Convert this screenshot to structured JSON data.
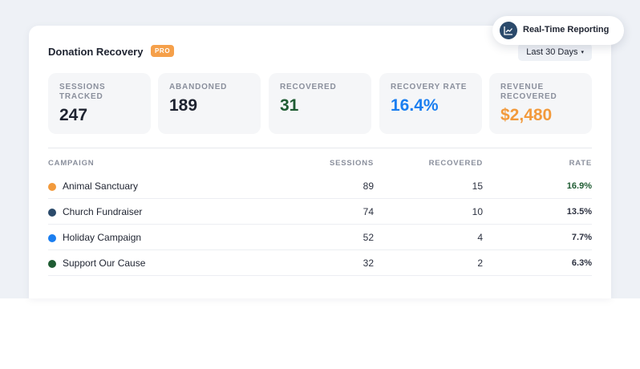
{
  "header": {
    "title": "Donation Recovery",
    "badge": "PRO",
    "range_label": "Last 30 Days",
    "range_caret": "▾"
  },
  "floating_pill": {
    "label": "Real-Time Reporting",
    "icon": "line-chart-icon"
  },
  "stats": [
    {
      "label": "SESSIONS TRACKED",
      "value": "247",
      "color": "#1e2330"
    },
    {
      "label": "ABANDONED",
      "value": "189",
      "color": "#1e2330"
    },
    {
      "label": "RECOVERED",
      "value": "31",
      "color": "#1f5c33"
    },
    {
      "label": "RECOVERY RATE",
      "value": "16.4%",
      "color": "#1a7ef0"
    },
    {
      "label": "REVENUE RECOVERED",
      "value": "$2,480",
      "color": "#f29a3c"
    }
  ],
  "table": {
    "columns": [
      "CAMPAIGN",
      "SESSIONS",
      "RECOVERED",
      "RATE"
    ],
    "rows": [
      {
        "campaign": "Animal Sanctuary",
        "sessions": "89",
        "recovered": "15",
        "rate": "16.9%",
        "dot_color": "#f29a3c",
        "rate_color": "#1f5c33"
      },
      {
        "campaign": "Church Fundraiser",
        "sessions": "74",
        "recovered": "10",
        "rate": "13.5%",
        "dot_color": "#2b4a6b",
        "rate_color": "#2c3140"
      },
      {
        "campaign": "Holiday Campaign",
        "sessions": "52",
        "recovered": "4",
        "rate": "7.7%",
        "dot_color": "#1a7ef0",
        "rate_color": "#2c3140"
      },
      {
        "campaign": "Support Our Cause",
        "sessions": "32",
        "recovered": "2",
        "rate": "6.3%",
        "dot_color": "#1f5c33",
        "rate_color": "#2c3140"
      }
    ]
  }
}
